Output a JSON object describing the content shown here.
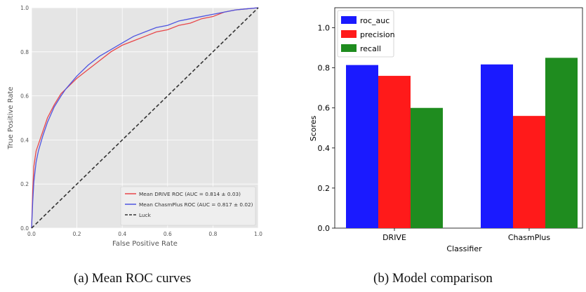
{
  "roc": {
    "type": "line",
    "xlabel": "False Positive Rate",
    "ylabel": "True Positive Rate",
    "xlim": [
      0.0,
      1.0
    ],
    "ylim": [
      0.0,
      1.0
    ],
    "ticks": [
      "0.0",
      "0.2",
      "0.4",
      "0.6",
      "0.8",
      "1.0"
    ],
    "tick_values": [
      0.0,
      0.2,
      0.4,
      0.6,
      0.8,
      1.0
    ],
    "grid": true,
    "legend_position": "bottom-right",
    "series": [
      {
        "name": "Mean DRIVE ROC (AUC = 0.814 ± 0.03)",
        "color": "#e8474a",
        "x": [
          0,
          0.005,
          0.01,
          0.02,
          0.03,
          0.05,
          0.07,
          0.1,
          0.13,
          0.15,
          0.2,
          0.25,
          0.3,
          0.35,
          0.4,
          0.45,
          0.5,
          0.55,
          0.6,
          0.65,
          0.7,
          0.75,
          0.8,
          0.85,
          0.9,
          0.95,
          1.0
        ],
        "y": [
          0,
          0.17,
          0.28,
          0.35,
          0.38,
          0.44,
          0.5,
          0.56,
          0.61,
          0.63,
          0.68,
          0.72,
          0.76,
          0.8,
          0.83,
          0.85,
          0.87,
          0.89,
          0.9,
          0.92,
          0.93,
          0.95,
          0.96,
          0.98,
          0.99,
          0.995,
          1.0
        ]
      },
      {
        "name": "Mean ChasmPlus ROC (AUC = 0.817 ± 0.02)",
        "color": "#4f55e0",
        "x": [
          0,
          0.005,
          0.01,
          0.02,
          0.03,
          0.05,
          0.07,
          0.1,
          0.13,
          0.15,
          0.2,
          0.25,
          0.3,
          0.35,
          0.4,
          0.45,
          0.5,
          0.55,
          0.6,
          0.65,
          0.7,
          0.75,
          0.8,
          0.85,
          0.9,
          0.95,
          1.0
        ],
        "y": [
          0,
          0.12,
          0.21,
          0.3,
          0.35,
          0.42,
          0.48,
          0.55,
          0.6,
          0.63,
          0.69,
          0.74,
          0.78,
          0.81,
          0.84,
          0.87,
          0.89,
          0.91,
          0.92,
          0.94,
          0.95,
          0.96,
          0.97,
          0.98,
          0.99,
          0.995,
          1.0
        ]
      },
      {
        "name": "Luck",
        "color": "#333333",
        "dashed": true,
        "x": [
          0,
          1
        ],
        "y": [
          0,
          1
        ]
      }
    ]
  },
  "comparison": {
    "type": "bar",
    "xlabel": "Classifier",
    "ylabel": "Scores",
    "ylim": [
      0.0,
      1.1
    ],
    "yticks": [
      "0.0",
      "0.2",
      "0.4",
      "0.6",
      "0.8",
      "1.0"
    ],
    "ytick_values": [
      0.0,
      0.2,
      0.4,
      0.6,
      0.8,
      1.0
    ],
    "categories": [
      "DRIVE",
      "ChasmPlus"
    ],
    "legend_position": "top-left",
    "series": [
      {
        "name": "roc_auc",
        "color": "#1a1aff",
        "values": [
          0.814,
          0.817
        ]
      },
      {
        "name": "precision",
        "color": "#ff1a1a",
        "values": [
          0.76,
          0.56
        ]
      },
      {
        "name": "recall",
        "color": "#1f8c1f",
        "values": [
          0.6,
          0.85
        ]
      }
    ]
  },
  "captions": {
    "a": "(a) Mean ROC curves",
    "b": "(b) Model comparison"
  }
}
